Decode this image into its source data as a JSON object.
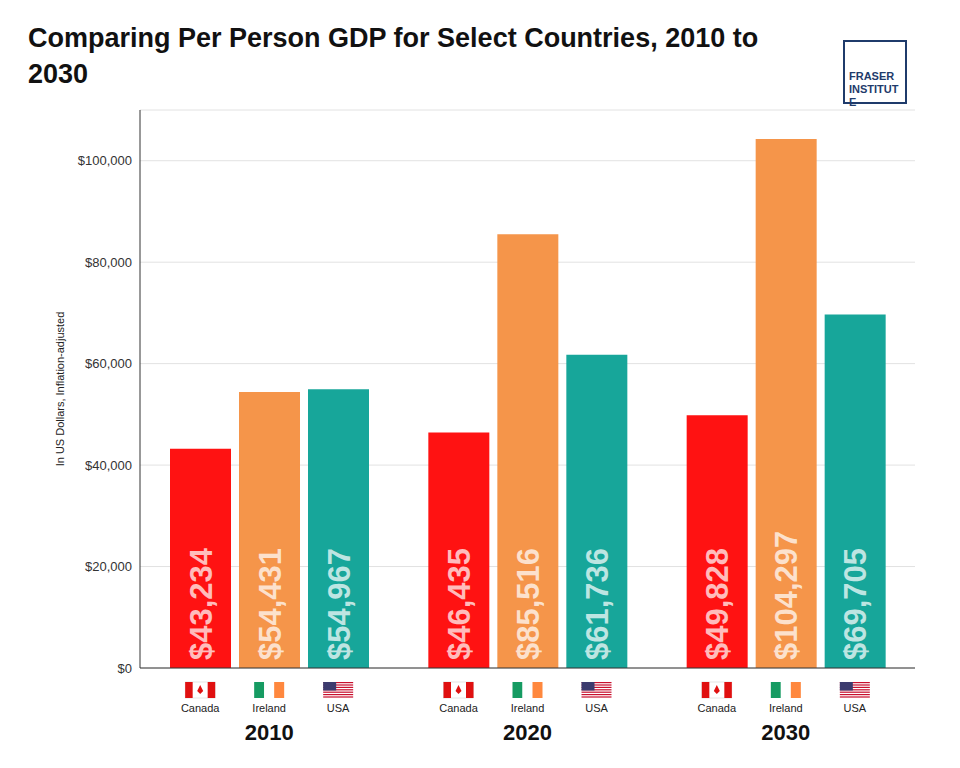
{
  "chart_data": {
    "type": "bar",
    "title": "Comparing Per Person GDP for Select Countries, 2010 to 2030",
    "y_label": "In US Dollars, Inflation-adjusted",
    "annotations": [
      "FRASER INSTITUTE"
    ],
    "categories": [
      "2010",
      "2020",
      "2030"
    ],
    "series": [
      {
        "name": "Canada",
        "color": "#ff1212",
        "values": [
          43234,
          46435,
          49828
        ],
        "value_labels": [
          "$43,234",
          "$46,435",
          "$49,828"
        ]
      },
      {
        "name": "Ireland",
        "color": "#f5954a",
        "values": [
          54431,
          85516,
          104297
        ],
        "value_labels": [
          "$54,431",
          "$85,516",
          "$104,297"
        ]
      },
      {
        "name": "USA",
        "color": "#17a69a",
        "values": [
          54967,
          61736,
          69705
        ],
        "value_labels": [
          "$54,967",
          "$61,736",
          "$69,705"
        ]
      }
    ],
    "ylim": [
      0,
      110000
    ],
    "yticks": [
      {
        "value": 0,
        "label": "$0"
      },
      {
        "value": 20000,
        "label": "$20,000"
      },
      {
        "value": 40000,
        "label": "$40,000"
      },
      {
        "value": 60000,
        "label": "$60,000"
      },
      {
        "value": 80000,
        "label": "$80,000"
      },
      {
        "value": 100000,
        "label": "$100,000"
      }
    ],
    "grid": true,
    "data_labels": true
  }
}
